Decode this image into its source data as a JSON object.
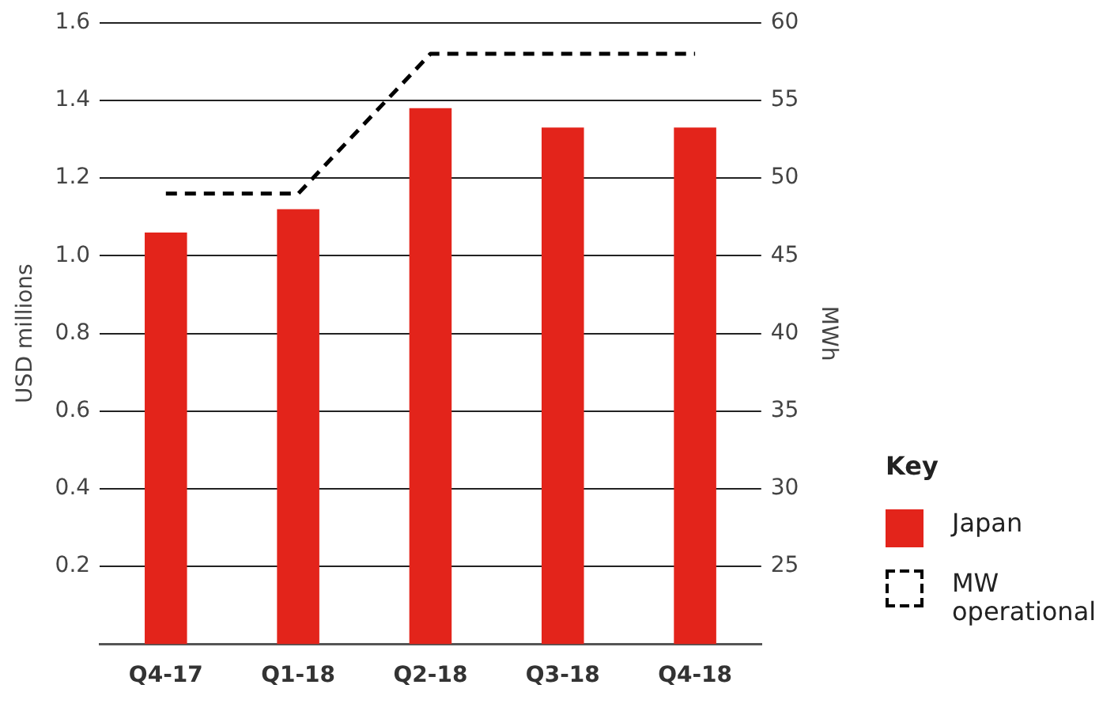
{
  "chart_data": {
    "type": "bar",
    "ylabel": "USD millions",
    "y2label": "MWh",
    "legend_title": "Key",
    "legend": "right",
    "grid": "y",
    "categories": [
      "Q4-17",
      "Q1-18",
      "Q2-18",
      "Q3-18",
      "Q4-18"
    ],
    "series": [
      {
        "name": "Japan",
        "color": "#e3241b",
        "values": [
          1.06,
          1.12,
          1.38,
          1.33,
          1.33
        ]
      },
      {
        "name": "MW operational",
        "type": "line",
        "axis": "y2",
        "color": "#000000",
        "line_style": "dashed",
        "marker": "none",
        "values": [
          49,
          49,
          58,
          58,
          58
        ]
      }
    ],
    "ylim": [
      0,
      1.6
    ],
    "yticks": [
      0.2,
      0.4,
      0.6,
      0.8,
      {
        "value": 1,
        "label": "1.0"
      },
      1.2,
      1.4,
      1.6
    ],
    "y2lim": [
      20,
      60
    ],
    "y2ticks": [
      25,
      30,
      35,
      40,
      45,
      50,
      55,
      60
    ]
  }
}
